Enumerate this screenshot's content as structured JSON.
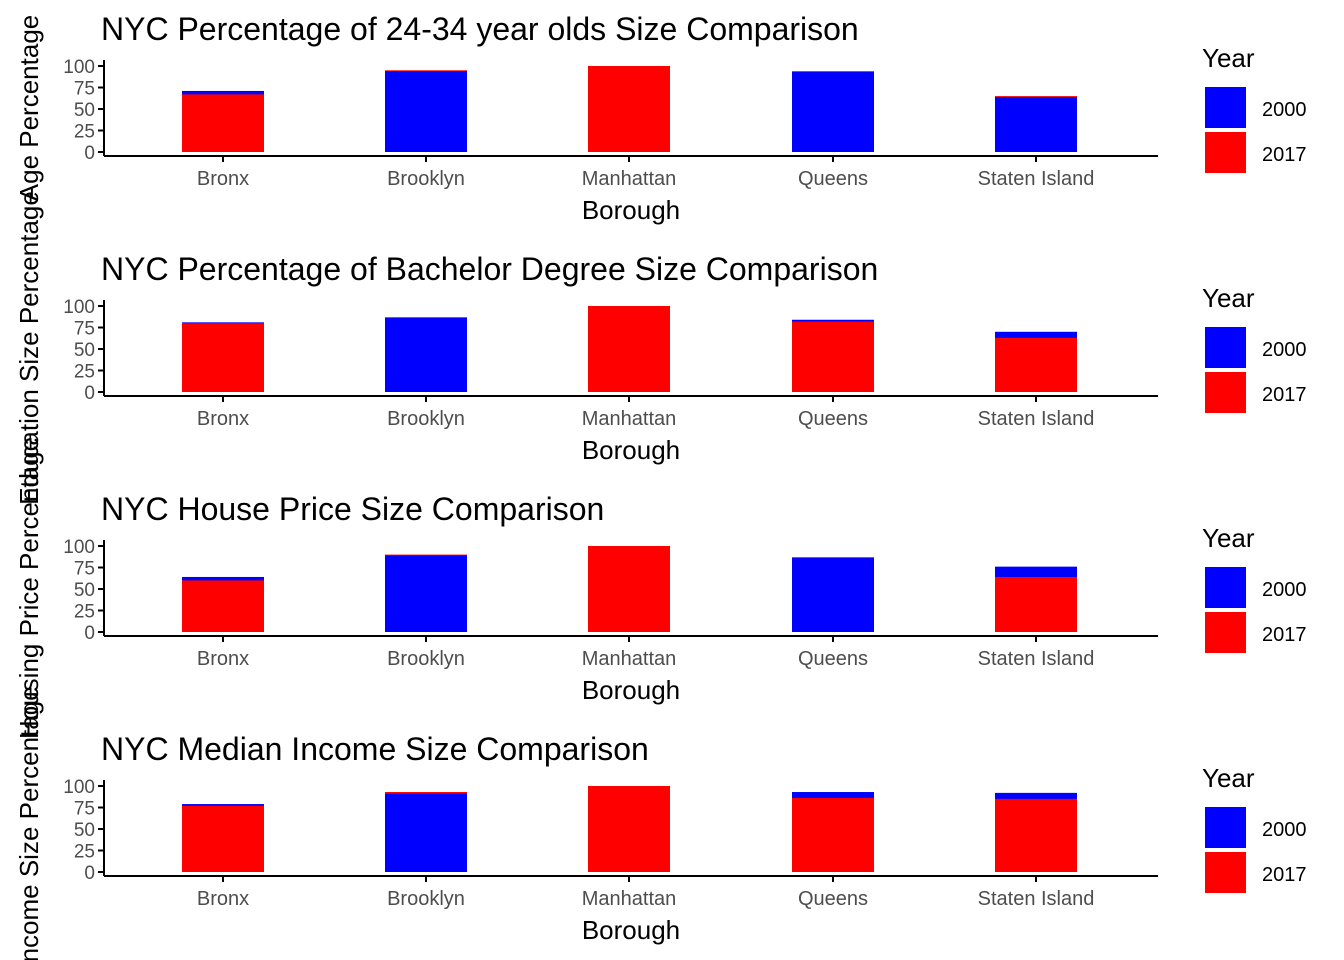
{
  "colors": {
    "y2000": "#0000ff",
    "y2017": "#ff0000",
    "axis": "#000000",
    "tick_text": "#4d4d4d",
    "text": "#000000"
  },
  "chart_data": [
    {
      "type": "bar",
      "title": "NYC Percentage of 24-34 year olds Size Comparison",
      "xlabel": "Borough",
      "ylabel": "Age Percentage",
      "ylim": [
        0,
        100
      ],
      "yticks": [
        "0",
        "25",
        "50",
        "75",
        "100"
      ],
      "categories": [
        "Bronx",
        "Brooklyn",
        "Manhattan",
        "Queens",
        "Staten Island"
      ],
      "series": [
        {
          "name": "2000",
          "values": [
            71,
            94,
            100,
            93,
            64
          ]
        },
        {
          "name": "2017",
          "values": [
            67,
            95,
            100,
            94,
            65
          ]
        }
      ],
      "legend": {
        "title": "Year",
        "position": "right",
        "labels": [
          "2000",
          "2017"
        ]
      }
    },
    {
      "type": "bar",
      "title": "NYC Percentage of Bachelor Degree Size Comparison",
      "xlabel": "Borough",
      "ylabel": "Education Size Percentage",
      "ylim": [
        0,
        100
      ],
      "yticks": [
        "0",
        "25",
        "50",
        "75",
        "100"
      ],
      "categories": [
        "Bronx",
        "Brooklyn",
        "Manhattan",
        "Queens",
        "Staten Island"
      ],
      "series": [
        {
          "name": "2000",
          "values": [
            81,
            86,
            100,
            84,
            70
          ]
        },
        {
          "name": "2017",
          "values": [
            80,
            87,
            100,
            82,
            63
          ]
        }
      ],
      "legend": {
        "title": "Year",
        "position": "right",
        "labels": [
          "2000",
          "2017"
        ]
      }
    },
    {
      "type": "bar",
      "title": "NYC House Price Size Comparison",
      "xlabel": "Borough",
      "ylabel": "Housing Price Percentage",
      "ylim": [
        0,
        100
      ],
      "yticks": [
        "0",
        "25",
        "50",
        "75",
        "100"
      ],
      "categories": [
        "Bronx",
        "Brooklyn",
        "Manhattan",
        "Queens",
        "Staten Island"
      ],
      "series": [
        {
          "name": "2000",
          "values": [
            64,
            89,
            100,
            86,
            76
          ]
        },
        {
          "name": "2017",
          "values": [
            60,
            90,
            100,
            87,
            64
          ]
        }
      ],
      "legend": {
        "title": "Year",
        "position": "right",
        "labels": [
          "2000",
          "2017"
        ]
      }
    },
    {
      "type": "bar",
      "title": "NYC Median Income Size Comparison",
      "xlabel": "Borough",
      "ylabel": "Income Size Percentage",
      "ylim": [
        0,
        100
      ],
      "yticks": [
        "0",
        "25",
        "50",
        "75",
        "100"
      ],
      "categories": [
        "Bronx",
        "Brooklyn",
        "Manhattan",
        "Queens",
        "Staten Island"
      ],
      "series": [
        {
          "name": "2000",
          "values": [
            79,
            91,
            100,
            93,
            92
          ]
        },
        {
          "name": "2017",
          "values": [
            77,
            93,
            100,
            86,
            85
          ]
        }
      ],
      "legend": {
        "title": "Year",
        "position": "right",
        "labels": [
          "2000",
          "2017"
        ]
      }
    }
  ]
}
